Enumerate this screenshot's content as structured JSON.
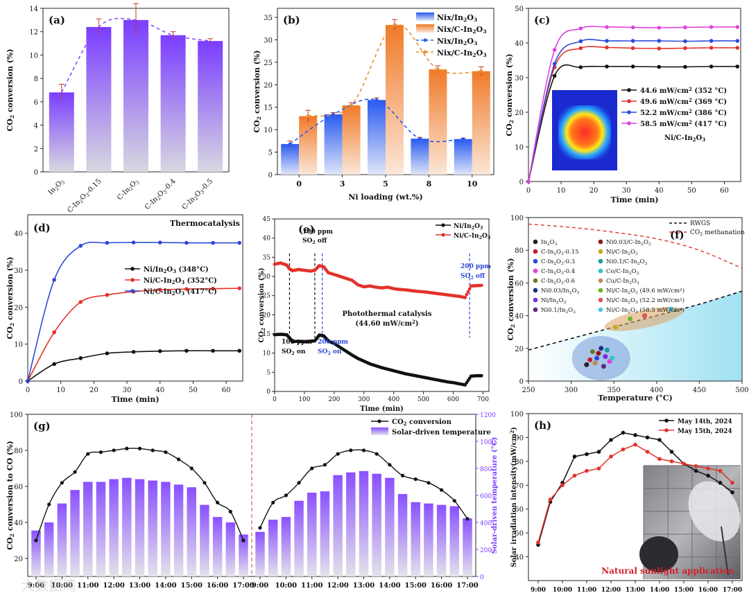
{
  "chart_data": [
    {
      "id": "a",
      "type": "bar",
      "panel_label": "(a)",
      "categories": [
        "In2O3",
        "C-In2O3-0.15",
        "C-In2O3",
        "C-In2O3-0.4",
        "C-In2O3-0.5"
      ],
      "values": [
        6.8,
        12.4,
        13.0,
        11.7,
        11.2
      ],
      "errors": [
        0.7,
        0.7,
        1.4,
        0.3,
        0.2
      ],
      "line_values": [
        6.8,
        12.4,
        13.0,
        11.7,
        11.2
      ],
      "ylabel": "CO2 conversion (%)",
      "ylim": [
        0,
        14
      ],
      "yticks": [
        0,
        2,
        4,
        6,
        8,
        10,
        12,
        14
      ],
      "bar_color": "#8a4dff"
    },
    {
      "id": "b",
      "type": "bar",
      "panel_label": "(b)",
      "categories": [
        "0",
        "3",
        "5",
        "8",
        "10"
      ],
      "series": [
        {
          "name": "Nix/In2O3",
          "values": [
            6.8,
            13.4,
            16.6,
            8.0,
            7.9
          ],
          "errors": [
            0.7,
            0.4,
            0.5,
            0.3,
            0.2
          ],
          "color": "#3d6df2"
        },
        {
          "name": "Nix/C-In2O3",
          "values": [
            13.0,
            15.4,
            33.3,
            23.4,
            23.0
          ],
          "errors": [
            1.3,
            0.6,
            1.2,
            0.8,
            1.0
          ],
          "color": "#f08a3c"
        }
      ],
      "legend": [
        "Nix/In2O3",
        "Nix/C-In2O3",
        "Nix/In2O3",
        "Nix/C-In2O3"
      ],
      "xlabel": "Ni loading (wt.%)",
      "ylabel": "CO2 conversion (%)",
      "ylim": [
        0,
        37
      ],
      "yticks": [
        0,
        5,
        10,
        15,
        20,
        25,
        30,
        35
      ]
    },
    {
      "id": "c",
      "type": "line",
      "panel_label": "(c)",
      "x": [
        0,
        8,
        16,
        24,
        32,
        40,
        48,
        56,
        64
      ],
      "series": [
        {
          "name": "44.6 mW/cm2 (352 °C)",
          "values": [
            0,
            30.5,
            33.0,
            33.2,
            33.2,
            33.1,
            33.1,
            33.2,
            33.2
          ],
          "color": "#111111"
        },
        {
          "name": "49.6 mW/cm2 (369 °C)",
          "values": [
            0,
            33.0,
            38.5,
            38.7,
            38.5,
            38.4,
            38.5,
            38.6,
            38.6
          ],
          "color": "#e2322b"
        },
        {
          "name": "52.2 mW/cm2 (386 °C)",
          "values": [
            0,
            34.0,
            40.5,
            40.6,
            40.6,
            40.6,
            40.5,
            40.6,
            40.6
          ],
          "color": "#2a49d8"
        },
        {
          "name": "58.5 mW/cm2 (417 °C)",
          "values": [
            0,
            38.0,
            44.2,
            44.6,
            44.5,
            44.4,
            44.5,
            44.6,
            44.6
          ],
          "color": "#e040e0"
        }
      ],
      "annotation": "Ni/C-In2O3",
      "xlabel": "Time (min)",
      "ylabel": "CO2 conversion (%)",
      "xlim": [
        0,
        65
      ],
      "xticks": [
        0,
        10,
        20,
        30,
        40,
        50,
        60
      ],
      "ylim": [
        0,
        50
      ],
      "yticks": [
        0,
        10,
        20,
        30,
        40,
        50
      ]
    },
    {
      "id": "d",
      "type": "line",
      "panel_label": "(d)",
      "title_text": "Thermocatalysis",
      "x": [
        0,
        8,
        16,
        24,
        32,
        40,
        48,
        56,
        64
      ],
      "series": [
        {
          "name": "Ni/In2O3 (348°C)",
          "values": [
            0,
            4.6,
            6.2,
            7.5,
            7.9,
            8.1,
            8.2,
            8.2,
            8.2
          ],
          "color": "#111111"
        },
        {
          "name": "Ni/C-In2O3 (352°C)",
          "values": [
            0,
            13.2,
            21.4,
            23.3,
            24.2,
            24.7,
            24.9,
            25.0,
            25.1
          ],
          "color": "#e2322b"
        },
        {
          "name": "Ni/C-In2O3 (417°C)",
          "values": [
            0,
            27.4,
            36.6,
            37.4,
            37.5,
            37.5,
            37.4,
            37.4,
            37.4
          ],
          "color": "#2a49d8"
        }
      ],
      "xlabel": "Time (min)",
      "ylabel": "CO2 conversion (%)",
      "xlim": [
        0,
        65
      ],
      "xticks": [
        0,
        10,
        20,
        30,
        40,
        50,
        60
      ],
      "ylim": [
        0,
        45
      ],
      "yticks": [
        0,
        10,
        20,
        30,
        40
      ]
    },
    {
      "id": "e",
      "type": "line",
      "panel_label": "(e)",
      "x": [
        0,
        20,
        40,
        50,
        60,
        80,
        100,
        120,
        135,
        150,
        165,
        180,
        200,
        220,
        240,
        260,
        280,
        300,
        320,
        340,
        360,
        380,
        400,
        420,
        440,
        460,
        480,
        500,
        520,
        540,
        560,
        580,
        600,
        620,
        640,
        660,
        680,
        700
      ],
      "series": [
        {
          "name": "Ni/In2O3",
          "values": [
            14.8,
            14.9,
            14.8,
            14.0,
            13.0,
            13.1,
            13.0,
            13.1,
            13.2,
            14.7,
            14.5,
            13.2,
            12.5,
            11.5,
            10.5,
            9.5,
            8.6,
            7.9,
            7.2,
            6.7,
            6.2,
            5.8,
            5.4,
            5.0,
            4.6,
            4.3,
            4.0,
            3.7,
            3.4,
            3.1,
            2.8,
            2.5,
            2.3,
            2.0,
            1.7,
            4.0,
            4.1,
            4.1
          ],
          "color": "#111111"
        },
        {
          "name": "Ni/C-In2O3",
          "values": [
            33.2,
            33.5,
            33.0,
            32.0,
            31.5,
            31.8,
            31.6,
            31.4,
            31.6,
            32.8,
            32.5,
            31.0,
            30.5,
            30.0,
            29.5,
            29.0,
            27.8,
            27.3,
            27.5,
            27.2,
            27.0,
            27.2,
            26.8,
            26.6,
            26.5,
            26.3,
            26.1,
            26.0,
            25.8,
            25.6,
            25.4,
            25.2,
            25.0,
            24.8,
            24.5,
            27.5,
            27.6,
            27.7
          ],
          "color": "#e2322b"
        }
      ],
      "annotations": [
        "100 ppm",
        "SO2 off",
        "100 ppm",
        "SO2 on",
        "200 ppm",
        "SO2 on",
        "200 ppm",
        "SO2 off",
        "Photothermal catalysis",
        "(44.60 mW/cm2)"
      ],
      "vlines": [
        50,
        135,
        160,
        655
      ],
      "xlabel": "Time (min)",
      "ylabel": "CO2 conversion (%)",
      "xlim": [
        0,
        720
      ],
      "xticks": [
        0,
        100,
        200,
        300,
        400,
        500,
        600,
        700
      ],
      "ylim": [
        0,
        45
      ],
      "yticks": [
        0,
        5,
        10,
        15,
        20,
        25,
        30,
        35,
        40,
        45
      ]
    },
    {
      "id": "f",
      "type": "scatter",
      "panel_label": "(f)",
      "legend_lines": [
        {
          "name": "RWGS",
          "color": "#111111"
        },
        {
          "name": "CO2 methanation",
          "color": "#e2322b"
        }
      ],
      "legend_items": [
        {
          "name": "In2O3",
          "color": "#222222",
          "x": 318,
          "y": 10
        },
        {
          "name": "C-In2O3-0.15",
          "color": "#c0202a",
          "x": 322,
          "y": 13
        },
        {
          "name": "C-In2O3-0.3",
          "color": "#2a49d8",
          "x": 330,
          "y": 14
        },
        {
          "name": "C-In2O3-0.4",
          "color": "#e040e0",
          "x": 345,
          "y": 12
        },
        {
          "name": "C-In2O3-0.6",
          "color": "#6a7a20",
          "x": 325,
          "y": 18
        },
        {
          "name": "Ni0.03/In2O3",
          "color": "#1c2c8a",
          "x": 335,
          "y": 20
        },
        {
          "name": "Ni/In2O3",
          "color": "#7a2ad8",
          "x": 340,
          "y": 15
        },
        {
          "name": "Ni0.1/In2O3",
          "color": "#5a2a7a",
          "x": 338,
          "y": 9
        },
        {
          "name": "Ni0.03/C-In2O3",
          "color": "#8a1a1a",
          "x": 332,
          "y": 17
        },
        {
          "name": "Ni/C-In2O3",
          "color": "#c8a818",
          "x": 352,
          "y": 33
        },
        {
          "name": "Ni0.1/C-In2O3",
          "color": "#1a9a9a",
          "x": 342,
          "y": 19
        },
        {
          "name": "Co/C-In2O3",
          "color": "#30c8c8",
          "x": 348,
          "y": 14
        },
        {
          "name": "Cu/C-In2O3",
          "color": "#c08a50",
          "x": 328,
          "y": 11
        },
        {
          "name": "Ni/C-In2O3 (49.6 mW/cm2)",
          "color": "#6ab820",
          "x": 369,
          "y": 38
        },
        {
          "name": "Ni/C-In2O3 (52.2 mW/cm2)",
          "color": "#e05050",
          "x": 386,
          "y": 40
        },
        {
          "name": "Ni/C-In2O3 (58.5 mW/cm2)",
          "color": "#40c8e8",
          "x": 417,
          "y": 44
        }
      ],
      "rwgs_curve": {
        "x": [
          250,
          300,
          350,
          400,
          450,
          500
        ],
        "y": [
          19,
          26,
          33,
          40,
          47,
          55
        ]
      },
      "methanation_curve": {
        "x": [
          250,
          300,
          350,
          400,
          450,
          500
        ],
        "y": [
          96,
          94,
          91,
          87,
          80,
          69
        ]
      },
      "xlabel": "Temperature (°C)",
      "ylabel": "CO2 conversion (%)",
      "xlim": [
        250,
        500
      ],
      "xticks": [
        250,
        300,
        350,
        400,
        450,
        500
      ],
      "ylim": [
        0,
        100
      ],
      "yticks": [
        0,
        20,
        40,
        60,
        80,
        100
      ]
    },
    {
      "id": "g",
      "type": "bar",
      "panel_label": "(g)",
      "days": [
        {
          "categories": [
            "9:00",
            "9:30",
            "10:00",
            "10:30",
            "11:00",
            "11:30",
            "12:00",
            "12:30",
            "13:00",
            "13:30",
            "14:00",
            "14:30",
            "15:00",
            "15:30",
            "16:00",
            "16:30",
            "17:00"
          ],
          "conversion": [
            30,
            50,
            62,
            68,
            78,
            79,
            80,
            81,
            81,
            80,
            79,
            75,
            70,
            62,
            51,
            46,
            30
          ],
          "temperature": [
            340,
            400,
            540,
            640,
            700,
            700,
            720,
            730,
            720,
            710,
            700,
            680,
            660,
            530,
            440,
            400,
            310
          ]
        },
        {
          "categories": [
            "9:00",
            "9:30",
            "10:00",
            "10:30",
            "11:00",
            "11:30",
            "12:00",
            "12:30",
            "13:00",
            "13:30",
            "14:00",
            "14:30",
            "15:00",
            "15:30",
            "16:00",
            "16:30",
            "17:00"
          ],
          "conversion": [
            37,
            51,
            55,
            62,
            70,
            72,
            78,
            80,
            80,
            78,
            72,
            66,
            64,
            62,
            58,
            52,
            42
          ],
          "temperature": [
            330,
            420,
            440,
            560,
            620,
            630,
            750,
            770,
            780,
            760,
            730,
            610,
            550,
            540,
            530,
            520,
            430
          ]
        }
      ],
      "xtick_labels": [
        "9:00",
        "10:00",
        "11:00",
        "12:00",
        "13:00",
        "14:00",
        "15:00",
        "16:00",
        "17:00"
      ],
      "legend": [
        "CO2 conversion",
        "Solar-driven temperature"
      ],
      "ylabel": "CO2 conversion to CO (%)",
      "y2label": "Solar-driven temperature (°C)",
      "ylim": [
        10,
        100
      ],
      "yticks": [
        20,
        40,
        60,
        80,
        100
      ],
      "y2lim": [
        0,
        1200
      ],
      "y2ticks": [
        0,
        200,
        400,
        600,
        800,
        1000,
        1200
      ]
    },
    {
      "id": "h",
      "type": "line",
      "panel_label": "(h)",
      "x": [
        9.0,
        9.5,
        10.0,
        10.5,
        11.0,
        11.5,
        12.0,
        12.5,
        13.0,
        13.5,
        14.0,
        14.5,
        15.0,
        15.5,
        16.0,
        16.5,
        17.0
      ],
      "series": [
        {
          "name": "May 14th, 2024",
          "values": [
            45,
            63,
            71,
            82,
            83,
            84,
            89,
            92,
            91,
            90,
            89,
            84,
            79,
            76,
            74,
            71,
            67
          ],
          "color": "#111111"
        },
        {
          "name": "May 15th, 2024",
          "values": [
            46,
            64,
            70,
            74,
            76,
            77,
            82,
            85,
            87,
            84,
            81,
            80,
            79,
            78,
            77,
            76,
            71
          ],
          "color": "#e2322b"
        }
      ],
      "inset_text": "Natural sunlight application",
      "xtick_labels": [
        "9:00",
        "10:00",
        "11:00",
        "12:00",
        "13:00",
        "14:00",
        "15:00",
        "16:00",
        "17:00"
      ],
      "ylabel": "Solar irradiation intensity(mW/cm2)",
      "xlim": [
        8.6,
        17.4
      ],
      "ylim": [
        30,
        100
      ],
      "yticks": [
        40,
        50,
        60,
        70,
        80,
        90,
        100
      ]
    }
  ],
  "watermark": "大数据湾"
}
